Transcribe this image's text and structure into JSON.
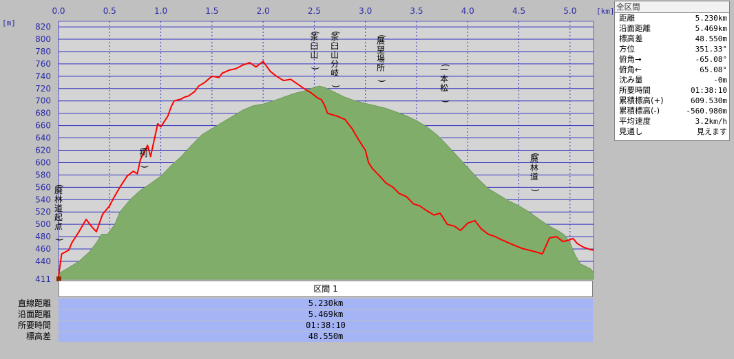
{
  "chart_data": {
    "type": "area",
    "xunit": "[km]",
    "yunit": "[m]",
    "xlim": [
      0,
      5.23
    ],
    "ylim": [
      411,
      829
    ],
    "x_ticks": [
      0.0,
      0.5,
      1.0,
      1.5,
      2.0,
      2.5,
      3.0,
      3.5,
      4.0,
      4.5,
      5.0
    ],
    "x_tick_labels": [
      "0.0",
      "0.5",
      "1.0",
      "1.5",
      "2.0",
      "2.5",
      "3.0",
      "3.5",
      "4.0",
      "4.5",
      "5.0"
    ],
    "y_ticks": [
      440,
      460,
      480,
      500,
      520,
      540,
      560,
      580,
      600,
      620,
      640,
      660,
      680,
      700,
      720,
      740,
      760,
      780,
      800,
      820
    ],
    "y_min_label": "411",
    "grid": true,
    "series": [
      {
        "role": "route",
        "color": "#ff0000",
        "x": [
          0.0,
          0.03,
          0.1,
          0.13,
          0.2,
          0.27,
          0.33,
          0.37,
          0.43,
          0.48,
          0.5,
          0.53,
          0.6,
          0.67,
          0.73,
          0.77,
          0.8,
          0.87,
          0.9,
          0.97,
          1.0,
          1.07,
          1.1,
          1.13,
          1.2,
          1.23,
          1.27,
          1.33,
          1.37,
          1.43,
          1.5,
          1.57,
          1.6,
          1.67,
          1.73,
          1.8,
          1.87,
          1.93,
          2.0,
          2.07,
          2.13,
          2.2,
          2.27,
          2.33,
          2.4,
          2.47,
          2.53,
          2.57,
          2.6,
          2.63,
          2.67,
          2.73,
          2.77,
          2.8,
          2.87,
          2.93,
          3.0,
          3.03,
          3.07,
          3.13,
          3.2,
          3.27,
          3.33,
          3.4,
          3.43,
          3.47,
          3.53,
          3.6,
          3.67,
          3.73,
          3.8,
          3.87,
          3.93,
          4.0,
          4.07,
          4.13,
          4.2,
          4.27,
          4.33,
          4.4,
          4.47,
          4.53,
          4.6,
          4.67,
          4.73,
          4.8,
          4.87,
          4.93,
          5.0,
          5.03,
          5.07,
          5.13,
          5.2,
          5.23
        ],
        "y": [
          415,
          452,
          458,
          470,
          488,
          508,
          495,
          488,
          516,
          526,
          530,
          540,
          560,
          578,
          586,
          582,
          605,
          628,
          610,
          663,
          658,
          676,
          690,
          700,
          703,
          706,
          708,
          715,
          724,
          730,
          740,
          738,
          745,
          750,
          752,
          758,
          762,
          755,
          764,
          748,
          740,
          733,
          735,
          728,
          720,
          713,
          705,
          702,
          693,
          680,
          678,
          675,
          672,
          670,
          655,
          638,
          620,
          600,
          590,
          580,
          567,
          560,
          550,
          545,
          540,
          533,
          530,
          522,
          515,
          518,
          500,
          497,
          490,
          502,
          506,
          493,
          484,
          480,
          475,
          470,
          465,
          461,
          458,
          455,
          452,
          478,
          480,
          472,
          475,
          477,
          469,
          463,
          459,
          458
        ]
      },
      {
        "role": "terrain",
        "color": "#80ad6a",
        "x": [
          0.0,
          0.1,
          0.2,
          0.3,
          0.37,
          0.42,
          0.48,
          0.55,
          0.6,
          0.7,
          0.8,
          0.9,
          1.0,
          1.1,
          1.2,
          1.3,
          1.4,
          1.5,
          1.6,
          1.7,
          1.8,
          1.9,
          2.0,
          2.1,
          2.2,
          2.3,
          2.4,
          2.5,
          2.55,
          2.6,
          2.7,
          2.8,
          2.9,
          3.0,
          3.1,
          3.2,
          3.3,
          3.4,
          3.5,
          3.6,
          3.7,
          3.8,
          3.9,
          4.0,
          4.1,
          4.2,
          4.3,
          4.4,
          4.5,
          4.6,
          4.7,
          4.8,
          4.9,
          4.95,
          5.0,
          5.05,
          5.1,
          5.2,
          5.23
        ],
        "y": [
          420,
          430,
          440,
          455,
          470,
          484,
          484,
          500,
          520,
          540,
          555,
          566,
          578,
          595,
          610,
          628,
          645,
          655,
          665,
          675,
          685,
          692,
          695,
          700,
          706,
          712,
          716,
          722,
          724,
          722,
          714,
          706,
          700,
          696,
          692,
          688,
          682,
          676,
          668,
          658,
          645,
          628,
          610,
          592,
          574,
          558,
          548,
          538,
          530,
          520,
          508,
          497,
          488,
          482,
          470,
          450,
          436,
          428,
          422
        ]
      }
    ],
    "annotations": [
      {
        "x": 0.0,
        "y": 468,
        "text": "(廃林道起点)"
      },
      {
        "x": 0.83,
        "y": 586,
        "text": "(祠)"
      },
      {
        "x": 2.5,
        "y": 764,
        "text": "(茶臼山)"
      },
      {
        "x": 2.7,
        "y": 760,
        "text": "(茶臼山分岐)"
      },
      {
        "x": 3.15,
        "y": 725,
        "text": "(展望場所)"
      },
      {
        "x": 3.77,
        "y": 692,
        "text": "(一本松)"
      },
      {
        "x": 4.65,
        "y": 548,
        "text": "(廃林道)"
      }
    ]
  },
  "stats_panel": {
    "title": "全区間",
    "rows": [
      {
        "label": "距離",
        "value": "5.230km"
      },
      {
        "label": "沿面距離",
        "value": "5.469km"
      },
      {
        "label": "標高差",
        "value": "48.550m"
      },
      {
        "label": "方位",
        "value": "351.33°"
      },
      {
        "label": "俯角→",
        "value": "-65.08°"
      },
      {
        "label": "俯角←",
        "value": "65.08°"
      },
      {
        "label": "沈み量",
        "value": "-0m"
      },
      {
        "label": "所要時間",
        "value": "01:38:10"
      },
      {
        "label": "累積標高(+)",
        "value": "609.530m"
      },
      {
        "label": "累積標高(-)",
        "value": "-560.980m"
      },
      {
        "label": "平均速度",
        "value": "3.2km/h"
      },
      {
        "label": "見通し",
        "value": "見えます"
      }
    ]
  },
  "section_table": {
    "header": "区間 1",
    "rows": [
      {
        "label": "直線距離",
        "value": "5.230km"
      },
      {
        "label": "沿面距離",
        "value": "5.469km"
      },
      {
        "label": "所要時間",
        "value": "01:38:10"
      },
      {
        "label": "標高差",
        "value": "48.550m"
      }
    ]
  },
  "colors": {
    "plot_background": "#d4d4d4",
    "grid": "#3030c0",
    "axis_text": "#2a2aa8",
    "section_value_bg": "#a4b4f4",
    "app_background": "#c0c0c0"
  }
}
